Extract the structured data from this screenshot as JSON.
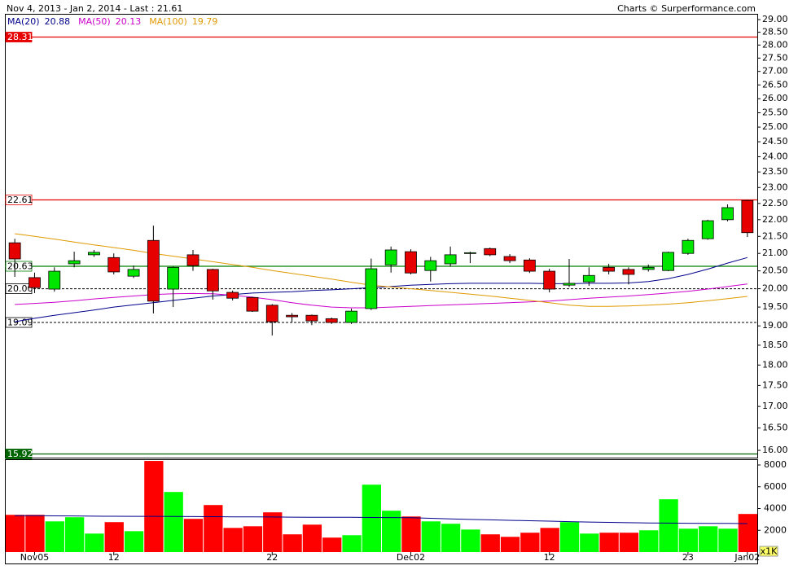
{
  "chart_data": {
    "type": "candlestick",
    "title": "Nov 4, 2013 - Jan 2, 2014 - Last : 21.61",
    "credit": "Charts © Surperformance.com",
    "log_scale": true,
    "up_color": "#00e600",
    "down_color": "#e60000",
    "categories": [
      null,
      "Nov05",
      null,
      null,
      null,
      "12",
      null,
      null,
      null,
      null,
      null,
      null,
      null,
      "22",
      null,
      null,
      null,
      null,
      null,
      null,
      "Dec02",
      null,
      null,
      null,
      null,
      null,
      null,
      "12",
      null,
      null,
      null,
      null,
      null,
      null,
      "23",
      null,
      null,
      "Jan02"
    ],
    "open": [
      21.31,
      20.31,
      19.99,
      20.7,
      20.96,
      20.88,
      20.35,
      21.38,
      19.99,
      20.96,
      20.54,
      19.9,
      19.76,
      19.55,
      19.28,
      19.28,
      19.19,
      19.09,
      19.46,
      20.67,
      21.05,
      20.51,
      20.7,
      21.0,
      21.14,
      20.91,
      20.81,
      20.49,
      20.1,
      20.19,
      20.6,
      20.54,
      20.54,
      20.51,
      21.0,
      21.43,
      22.0,
      22.59
    ],
    "high": [
      21.43,
      20.45,
      20.6,
      21.05,
      21.1,
      21.0,
      20.65,
      21.82,
      20.62,
      21.1,
      20.56,
      19.95,
      19.78,
      19.58,
      19.34,
      19.3,
      19.22,
      19.46,
      20.85,
      21.2,
      21.12,
      20.9,
      21.2,
      21.05,
      21.17,
      20.98,
      20.86,
      20.56,
      20.84,
      20.6,
      20.7,
      20.6,
      20.68,
      21.05,
      21.43,
      22.0,
      22.47,
      22.61
    ],
    "low": [
      20.33,
      19.88,
      19.92,
      20.6,
      20.9,
      20.4,
      20.3,
      19.33,
      19.5,
      20.5,
      19.7,
      19.68,
      19.37,
      18.75,
      19.1,
      19.02,
      19.05,
      19.05,
      19.42,
      20.45,
      20.4,
      20.2,
      20.62,
      20.72,
      20.92,
      20.72,
      20.44,
      19.9,
      20.05,
      20.08,
      20.4,
      20.12,
      20.48,
      20.49,
      20.96,
      21.4,
      21.95,
      21.48
    ],
    "close": [
      20.84,
      20.03,
      20.49,
      20.79,
      21.03,
      20.47,
      20.54,
      19.66,
      20.6,
      20.65,
      19.94,
      19.74,
      19.39,
      19.11,
      19.24,
      19.13,
      19.09,
      19.39,
      20.56,
      21.1,
      20.44,
      20.79,
      20.96,
      21.02,
      20.96,
      20.79,
      20.49,
      19.99,
      20.15,
      20.37,
      20.49,
      20.4,
      20.6,
      21.03,
      21.38,
      21.97,
      22.37,
      21.61
    ],
    "series": [
      {
        "name": "MA(20)",
        "color": "#00008b",
        "values": [
          19.11,
          19.2,
          19.28,
          19.35,
          19.42,
          19.5,
          19.56,
          19.62,
          19.68,
          19.74,
          19.8,
          19.84,
          19.88,
          19.9,
          19.92,
          19.95,
          19.97,
          20.0,
          20.03,
          20.06,
          20.1,
          20.12,
          20.14,
          20.15,
          20.15,
          20.15,
          20.15,
          20.14,
          20.14,
          20.15,
          20.15,
          20.16,
          20.2,
          20.28,
          20.4,
          20.55,
          20.72,
          20.88
        ]
      },
      {
        "name": "MA(50)",
        "color": "#cc00cc",
        "values": [
          19.57,
          19.6,
          19.63,
          19.67,
          19.72,
          19.76,
          19.8,
          19.84,
          19.86,
          19.87,
          19.86,
          19.82,
          19.77,
          19.7,
          19.62,
          19.55,
          19.5,
          19.48,
          19.48,
          19.5,
          19.52,
          19.54,
          19.56,
          19.58,
          19.6,
          19.62,
          19.64,
          19.66,
          19.7,
          19.74,
          19.77,
          19.8,
          19.84,
          19.88,
          19.93,
          19.99,
          20.06,
          20.13
        ]
      },
      {
        "name": "MA(100)",
        "color": "#e09a00",
        "values": [
          21.58,
          21.5,
          21.42,
          21.33,
          21.25,
          21.17,
          21.09,
          21.0,
          20.92,
          20.84,
          20.76,
          20.68,
          20.6,
          20.51,
          20.43,
          20.35,
          20.27,
          20.18,
          20.1,
          20.05,
          20.0,
          19.95,
          19.9,
          19.85,
          19.8,
          19.74,
          19.68,
          19.62,
          19.55,
          19.52,
          19.52,
          19.53,
          19.55,
          19.58,
          19.62,
          19.67,
          19.73,
          19.79
        ]
      }
    ],
    "ylim": [
      15.84,
      29.2
    ],
    "yticks": [
      {
        "value": 16,
        "label": "16.00"
      },
      {
        "value": 16.5,
        "label": "16.50"
      },
      {
        "value": 17,
        "label": "17.00"
      },
      {
        "value": 17.5,
        "label": "17.50"
      },
      {
        "value": 18,
        "label": "18.00"
      },
      {
        "value": 18.5,
        "label": "18.50"
      },
      {
        "value": 19,
        "label": "19.00"
      },
      {
        "value": 19.5,
        "label": "19.50"
      },
      {
        "value": 20,
        "label": "20.00"
      },
      {
        "value": 20.5,
        "label": "20.50"
      },
      {
        "value": 21,
        "label": "21.00"
      },
      {
        "value": 21.5,
        "label": "21.50"
      },
      {
        "value": 22,
        "label": "22.00"
      },
      {
        "value": 22.5,
        "label": "22.50"
      },
      {
        "value": 23,
        "label": "23.00"
      },
      {
        "value": 23.5,
        "label": "23.50"
      },
      {
        "value": 24,
        "label": "24.00"
      },
      {
        "value": 24.5,
        "label": "24.50"
      },
      {
        "value": 25,
        "label": "25.00"
      },
      {
        "value": 25.5,
        "label": "25.50"
      },
      {
        "value": 26,
        "label": "26.00"
      },
      {
        "value": 26.5,
        "label": "26.50"
      },
      {
        "value": 27,
        "label": "27.00"
      },
      {
        "value": 27.5,
        "label": "27.50"
      },
      {
        "value": 28,
        "label": "28.00"
      },
      {
        "value": 28.5,
        "label": "28.50"
      },
      {
        "value": 29,
        "label": "29.00"
      }
    ],
    "levels": [
      {
        "value": 28.31,
        "color": "#e60000",
        "dashed": false,
        "label_fill": "#e60000",
        "label_color": "#ffffff"
      },
      {
        "value": 22.61,
        "color": "#e60000",
        "dashed": false,
        "label_fill": "#ffffff",
        "label_color": "#000000"
      },
      {
        "value": 20.63,
        "color": "#008000",
        "dashed": false,
        "label_fill": "#ffffff",
        "label_color": "#000000"
      },
      {
        "value": 20,
        "label": "20.00",
        "color": "#000000",
        "dashed": true,
        "label_fill": "#ffffff",
        "label_color": "#000000"
      },
      {
        "value": 19.09,
        "color": "#000000",
        "dashed": true,
        "label_fill": "#ffffff",
        "label_color": "#000000"
      },
      {
        "value": 15.92,
        "color": "#006400",
        "dashed": false,
        "label_fill": "#006400",
        "label_color": "#ffffff"
      }
    ],
    "volume": {
      "values": [
        3420,
        3420,
        2820,
        3200,
        1700,
        2750,
        1920,
        8370,
        5520,
        3050,
        4320,
        2220,
        2370,
        3650,
        1630,
        2520,
        1330,
        1550,
        6190,
        3800,
        3270,
        2820,
        2600,
        2070,
        1630,
        1400,
        1780,
        2220,
        2750,
        1700,
        1780,
        1780,
        2000,
        4850,
        2150,
        2370,
        2150,
        3500
      ],
      "up_color": "#00ff00",
      "down_color": "#ff0000",
      "average": {
        "color": "#00008b",
        "values": [
          3350,
          3340,
          3330,
          3320,
          3300,
          3290,
          3280,
          3280,
          3270,
          3260,
          3250,
          3240,
          3230,
          3220,
          3210,
          3200,
          3190,
          3190,
          3180,
          3170,
          3160,
          3100,
          3050,
          3000,
          2960,
          2920,
          2880,
          2840,
          2800,
          2760,
          2730,
          2700,
          2680,
          2660,
          2650,
          2640,
          2630,
          2620
        ]
      },
      "ylim": [
        0,
        8450
      ],
      "yticks": [
        2000,
        4000,
        6000,
        8000
      ],
      "unit": "x1K"
    }
  }
}
